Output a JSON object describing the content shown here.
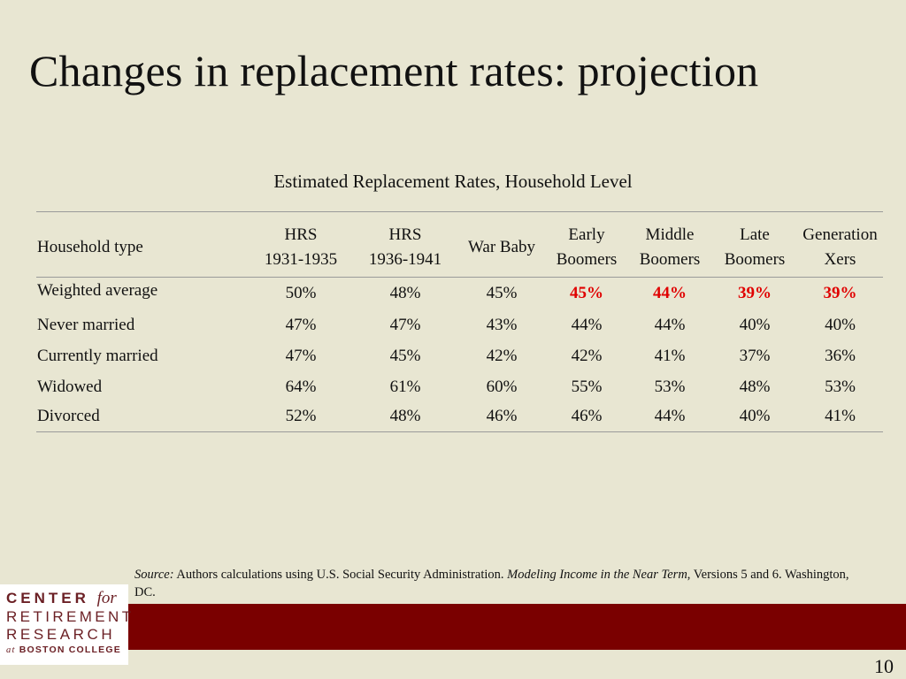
{
  "slide": {
    "title": "Changes in replacement rates: projection",
    "page_number": "10"
  },
  "table": {
    "caption": "Estimated Replacement Rates, Household Level",
    "header": {
      "first": "Household type",
      "columns": [
        {
          "line1": "HRS",
          "line2": "1931-1935"
        },
        {
          "line1": "HRS",
          "line2": "1936-1941"
        },
        {
          "line1": "War Baby",
          "line2": ""
        },
        {
          "line1": "Early",
          "line2": "Boomers"
        },
        {
          "line1": "Middle",
          "line2": "Boomers"
        },
        {
          "line1": "Late",
          "line2": "Boomers"
        },
        {
          "line1": "Generation",
          "line2": "Xers"
        }
      ]
    },
    "rows": [
      {
        "label": "Weighted average",
        "values": [
          "50%",
          "48%",
          "45%",
          "45%",
          "44%",
          "39%",
          "39%"
        ]
      },
      {
        "label": "Never married",
        "values": [
          "47%",
          "47%",
          "43%",
          "44%",
          "44%",
          "40%",
          "40%"
        ]
      },
      {
        "label": "Currently married",
        "values": [
          "47%",
          "45%",
          "42%",
          "42%",
          "41%",
          "37%",
          "36%"
        ]
      },
      {
        "label": "Widowed",
        "values": [
          "64%",
          "61%",
          "60%",
          "55%",
          "53%",
          "48%",
          "53%"
        ]
      },
      {
        "label": "Divorced",
        "values": [
          "52%",
          "48%",
          "46%",
          "46%",
          "44%",
          "40%",
          "41%"
        ]
      }
    ],
    "highlight_color": "#e00000"
  },
  "source": {
    "label": "Source:",
    "text1": " Authors calculations using U.S. Social Security Administration. ",
    "title": "Modeling Income in the Near Term",
    "text2": ", Versions 5 and 6. Washington, DC."
  },
  "logo": {
    "line1": "CENTER",
    "line1_for": "for",
    "line2": "RETIREMENT",
    "line3": "RESEARCH",
    "line4_at": "at",
    "line4": "BOSTON COLLEGE"
  },
  "colors": {
    "background": "#e8e6d2",
    "band": "#7a0000",
    "logo_text": "#6b1f24"
  }
}
